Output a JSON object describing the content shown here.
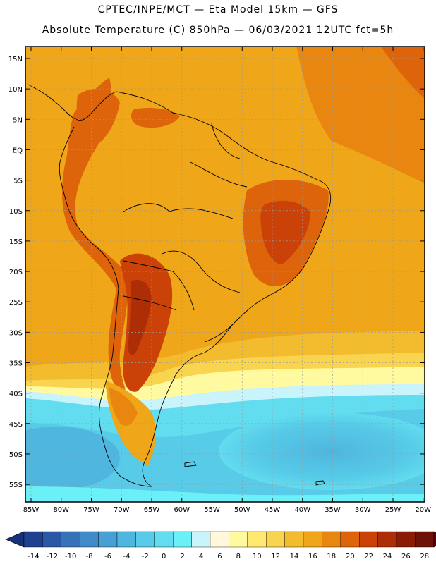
{
  "title_line1": "CPTEC/INPE/MCT —  Eta Model 15km — GFS",
  "title_line2": "Absolute Temperature (C) 850hPa — 06/03/2021 12UTC fct=5h",
  "lat_labels": [
    "15N",
    "10N",
    "5N",
    "EQ",
    "5S",
    "10S",
    "15S",
    "20S",
    "25S",
    "30S",
    "35S",
    "40S",
    "45S",
    "50S",
    "55S"
  ],
  "lat_values": [
    15,
    10,
    5,
    0,
    -5,
    -10,
    -15,
    -20,
    -25,
    -30,
    -35,
    -40,
    -45,
    -50,
    -55
  ],
  "lon_labels": [
    "85W",
    "80W",
    "75W",
    "70W",
    "65W",
    "60W",
    "55W",
    "50W",
    "45W",
    "40W",
    "35W",
    "30W",
    "25W",
    "20W"
  ],
  "lon_values": [
    -85,
    -80,
    -75,
    -70,
    -65,
    -60,
    -55,
    -50,
    -45,
    -40,
    -35,
    -30,
    -25,
    -20
  ],
  "colorbar": {
    "ticks": [
      "-14",
      "-12",
      "-10",
      "-8",
      "-6",
      "-4",
      "-2",
      "0",
      "2",
      "4",
      "6",
      "8",
      "10",
      "12",
      "14",
      "16",
      "18",
      "20",
      "22",
      "24",
      "26",
      "28"
    ],
    "colors": [
      "#1f3f8f",
      "#2b58a6",
      "#3672b8",
      "#3f8ac7",
      "#46a0d4",
      "#4eb6df",
      "#57cbe8",
      "#62dcef",
      "#6cf0f7",
      "#c9f4fb",
      "#fff8dc",
      "#fffaa0",
      "#ffe970",
      "#f9d44e",
      "#f3bc2e",
      "#efa619",
      "#e8860f",
      "#de640b",
      "#cb4208",
      "#ad2d06",
      "#8a1c06",
      "#6c1206"
    ],
    "left_color": "#17327a",
    "right_color": "#58000f"
  }
}
